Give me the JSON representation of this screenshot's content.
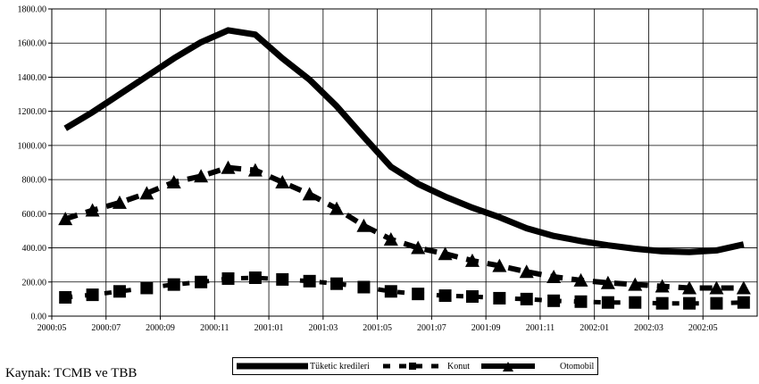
{
  "chart_data": {
    "type": "line",
    "title": "",
    "xlabel": "",
    "ylabel": "",
    "ylim": [
      0,
      1800
    ],
    "yticks": [
      "0.00",
      "200.00",
      "400.00",
      "600.00",
      "800.00",
      "1000.00",
      "1200.00",
      "1400.00",
      "1600.00",
      "1800.00"
    ],
    "xticks": [
      "2000:05",
      "2000:07",
      "2000:09",
      "2000:11",
      "2001:01",
      "2001:03",
      "2001:05",
      "2001:07",
      "2001:09",
      "2001:11",
      "2002:01",
      "2002:03",
      "2002:05"
    ],
    "grid": true,
    "legend_position": "bottom",
    "x": [
      "2000:05",
      "2000:06",
      "2000:07",
      "2000:08",
      "2000:09",
      "2000:10",
      "2000:11",
      "2000:12",
      "2001:01",
      "2001:02",
      "2001:03",
      "2001:04",
      "2001:05",
      "2001:06",
      "2001:07",
      "2001:08",
      "2001:09",
      "2001:10",
      "2001:11",
      "2001:12",
      "2002:01",
      "2002:02",
      "2002:03",
      "2002:04",
      "2002:05",
      "2002:06"
    ],
    "series": [
      {
        "name": "Tüketic kredileri",
        "style": "solid",
        "color": "#000000",
        "values": [
          1100,
          1195,
          1300,
          1405,
          1510,
          1605,
          1675,
          1650,
          1510,
          1385,
          1230,
          1050,
          875,
          775,
          700,
          635,
          580,
          515,
          470,
          440,
          415,
          395,
          380,
          375,
          385,
          420
        ]
      },
      {
        "name": "Konut",
        "style": "square-dash",
        "color": "#000000",
        "values": [
          110,
          125,
          145,
          165,
          185,
          200,
          220,
          225,
          215,
          205,
          190,
          170,
          145,
          130,
          120,
          115,
          105,
          100,
          90,
          85,
          80,
          80,
          75,
          75,
          75,
          80
        ]
      },
      {
        "name": "Otomobil",
        "style": "triangle-dash",
        "color": "#000000",
        "values": [
          570,
          620,
          665,
          720,
          785,
          820,
          870,
          855,
          785,
          715,
          630,
          530,
          450,
          400,
          365,
          325,
          295,
          260,
          230,
          210,
          195,
          185,
          175,
          165,
          165,
          165
        ]
      }
    ]
  },
  "source_note": "Kaynak: TCMB ve TBB"
}
